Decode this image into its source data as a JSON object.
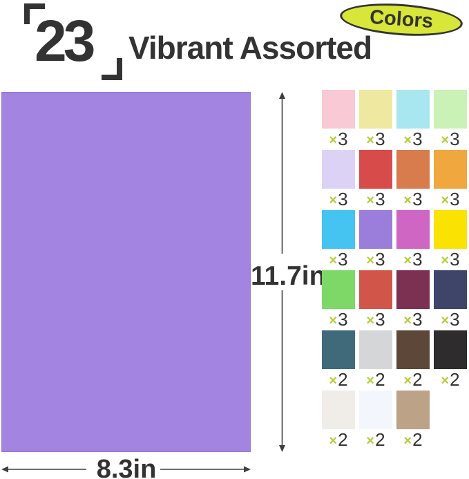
{
  "header": {
    "count": "23",
    "title": "Vibrant Assorted",
    "badge_label": "Colors"
  },
  "paper": {
    "color": "#A384E0",
    "color_name": "purple",
    "width_label": "8.3in",
    "height_label": "11.7in"
  },
  "colors": {
    "text_dark": "#333333",
    "badge_fill": "#D8E639",
    "badge_border": "#333333",
    "multiplier_green": "#B5CC35",
    "dimension_line": "#3F3F3F"
  },
  "swatch_grid": {
    "multiply_sign": "×",
    "cells": [
      {
        "name": "light-pink",
        "color": "#F9C9D6",
        "qty": "3"
      },
      {
        "name": "pale-yellow",
        "color": "#EFE8A1",
        "qty": "3"
      },
      {
        "name": "light-cyan",
        "color": "#A8E7F0",
        "qty": "3"
      },
      {
        "name": "pale-green",
        "color": "#CBF2B6",
        "qty": "3"
      },
      {
        "name": "lavender",
        "color": "#DCD2F6",
        "qty": "3"
      },
      {
        "name": "red",
        "color": "#D84B4B",
        "qty": "3"
      },
      {
        "name": "terracotta",
        "color": "#D87C4E",
        "qty": "3"
      },
      {
        "name": "orange",
        "color": "#EFA73E",
        "qty": "3"
      },
      {
        "name": "sky-blue",
        "color": "#45C3F1",
        "qty": "3"
      },
      {
        "name": "purple",
        "color": "#9B7DDC",
        "qty": "3"
      },
      {
        "name": "orchid-pink",
        "color": "#CF66C4",
        "qty": "3"
      },
      {
        "name": "yellow",
        "color": "#FAE303",
        "qty": "3"
      },
      {
        "name": "green",
        "color": "#7ED867",
        "qty": "3"
      },
      {
        "name": "coral-red",
        "color": "#D15649",
        "qty": "3"
      },
      {
        "name": "plum",
        "color": "#7C3052",
        "qty": "3"
      },
      {
        "name": "navy-blue",
        "color": "#3E4568",
        "qty": "3"
      },
      {
        "name": "teal",
        "color": "#40697A",
        "qty": "2"
      },
      {
        "name": "light-gray",
        "color": "#D5D6D8",
        "qty": "2"
      },
      {
        "name": "brown",
        "color": "#5D4739",
        "qty": "2"
      },
      {
        "name": "charcoal-black",
        "color": "#2E2C2D",
        "qty": "2"
      },
      {
        "name": "ivory-white",
        "color": "#F0EDE8",
        "qty": "2"
      },
      {
        "name": "white",
        "color": "#F4F6FD",
        "qty": "2"
      },
      {
        "name": "tan-kraft",
        "color": "#BCA287",
        "qty": "2"
      }
    ]
  }
}
